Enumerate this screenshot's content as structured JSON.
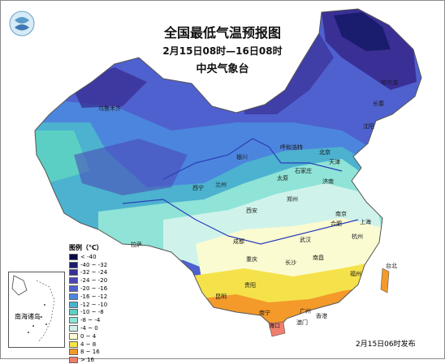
{
  "title": "全国最低气温预报图",
  "period": "2月15日08时—16日08时",
  "agency": "中央气象台",
  "release": "2月15日06时发布",
  "inset_label": "南海诸岛",
  "legend": {
    "title": "图例（℃）",
    "items": [
      {
        "label": "< -40",
        "color": "#0b0a47"
      },
      {
        "label": "-40 ~ -32",
        "color": "#1a1c6e"
      },
      {
        "label": "-32 ~ -24",
        "color": "#3a2f95"
      },
      {
        "label": "-24 ~ -20",
        "color": "#4b44b6"
      },
      {
        "label": "-20 ~ -16",
        "color": "#4f61cf"
      },
      {
        "label": "-16 ~ -12",
        "color": "#4c85dd"
      },
      {
        "label": "-12 ~ -10",
        "color": "#4cb2cf"
      },
      {
        "label": "-10 ~ -8",
        "color": "#5ccfc5"
      },
      {
        "label": "-8 ~ -4",
        "color": "#8fe3d7"
      },
      {
        "label": "-4 ~ 0",
        "color": "#cff3ea"
      },
      {
        "label": "0 ~ 4",
        "color": "#fbfbd2"
      },
      {
        "label": "4 ~ 8",
        "color": "#f5e24a"
      },
      {
        "label": "8 ~ 16",
        "color": "#f49a2a"
      },
      {
        "label": "> 16",
        "color": "#ef7e6c"
      }
    ]
  },
  "cities": [
    {
      "name": "乌鲁木齐",
      "key": "urumqi"
    },
    {
      "name": "哈尔滨",
      "key": "harbin"
    },
    {
      "name": "长春",
      "key": "changchun"
    },
    {
      "name": "沈阳",
      "key": "shenyang"
    },
    {
      "name": "呼和浩特",
      "key": "hohhot"
    },
    {
      "name": "北京",
      "key": "beijing"
    },
    {
      "name": "天津",
      "key": "tianjin"
    },
    {
      "name": "石家庄",
      "key": "shijiazhuang"
    },
    {
      "name": "太原",
      "key": "taiyuan"
    },
    {
      "name": "银川",
      "key": "yinchuan"
    },
    {
      "name": "济南",
      "key": "jinan"
    },
    {
      "name": "兰州",
      "key": "lanzhou"
    },
    {
      "name": "西宁",
      "key": "xining"
    },
    {
      "name": "西安",
      "key": "xian"
    },
    {
      "name": "郑州",
      "key": "zhengzhou"
    },
    {
      "name": "南京",
      "key": "nanjing"
    },
    {
      "name": "合肥",
      "key": "hefei"
    },
    {
      "name": "上海",
      "key": "shanghai"
    },
    {
      "name": "武汉",
      "key": "wuhan"
    },
    {
      "name": "杭州",
      "key": "hangzhou"
    },
    {
      "name": "拉萨",
      "key": "lhasa"
    },
    {
      "name": "成都",
      "key": "chengdu"
    },
    {
      "name": "重庆",
      "key": "chongqing"
    },
    {
      "name": "长沙",
      "key": "changsha"
    },
    {
      "name": "南昌",
      "key": "nanchang"
    },
    {
      "name": "福州",
      "key": "fuzhou"
    },
    {
      "name": "贵阳",
      "key": "guiyang"
    },
    {
      "name": "昆明",
      "key": "kunming"
    },
    {
      "name": "台北",
      "key": "taipei"
    },
    {
      "name": "南宁",
      "key": "nanning"
    },
    {
      "name": "广州",
      "key": "guangzhou"
    },
    {
      "name": "海口",
      "key": "haikou"
    },
    {
      "name": "香港",
      "key": "hongkong"
    },
    {
      "name": "澳门",
      "key": "macau"
    }
  ]
}
